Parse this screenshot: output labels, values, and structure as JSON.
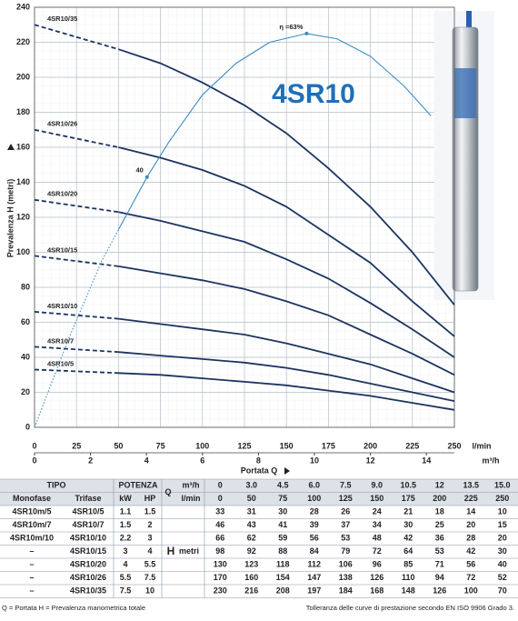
{
  "chart_data": {
    "type": "line",
    "brand": "4SR10",
    "xlabel": "Portata Q",
    "ylabel": "Prevalenza H (metri)",
    "x": [
      0,
      50,
      75,
      100,
      125,
      150,
      175,
      200,
      225,
      250
    ],
    "xlim": [
      0,
      250
    ],
    "xticks": [
      0,
      25,
      50,
      75,
      100,
      125,
      150,
      175,
      200,
      225,
      250
    ],
    "x_unit": "l/min",
    "x2lim": [
      0,
      15
    ],
    "x2ticks": [
      0,
      2,
      4,
      6,
      8,
      10,
      12,
      14
    ],
    "x2_unit": "m³/h",
    "ylim": [
      0,
      240
    ],
    "yticks": [
      0,
      20,
      40,
      60,
      80,
      100,
      120,
      140,
      160,
      180,
      200,
      220,
      240
    ],
    "grid": true,
    "series": [
      {
        "name": "4SR10/5",
        "color": "#1d3461",
        "values": [
          33,
          31,
          30,
          28,
          26,
          24,
          21,
          18,
          14,
          10
        ]
      },
      {
        "name": "4SR10/7",
        "color": "#1d3461",
        "values": [
          46,
          43,
          41,
          39,
          37,
          34,
          30,
          25,
          20,
          15
        ]
      },
      {
        "name": "4SR10/10",
        "color": "#1d3461",
        "values": [
          66,
          62,
          59,
          56,
          53,
          48,
          42,
          36,
          28,
          20
        ]
      },
      {
        "name": "4SR10/15",
        "color": "#1d3461",
        "values": [
          98,
          92,
          88,
          84,
          79,
          72,
          64,
          53,
          42,
          30
        ]
      },
      {
        "name": "4SR10/20",
        "color": "#1d3461",
        "values": [
          130,
          123,
          118,
          112,
          106,
          96,
          85,
          71,
          56,
          40
        ]
      },
      {
        "name": "4SR10/26",
        "color": "#1d3461",
        "values": [
          170,
          160,
          154,
          147,
          138,
          126,
          110,
          94,
          72,
          52
        ]
      },
      {
        "name": "4SR10/35",
        "color": "#1d3461",
        "values": [
          230,
          216,
          208,
          197,
          184,
          168,
          148,
          126,
          100,
          70
        ]
      }
    ],
    "efficiency": {
      "color": "#3b8cc2",
      "x": [
        0,
        20,
        40,
        50,
        67,
        80,
        100,
        120,
        140,
        162,
        180,
        200,
        220,
        236
      ],
      "values": [
        0,
        50,
        95,
        113,
        143,
        163,
        190,
        208,
        220,
        225,
        222,
        212,
        195,
        178
      ],
      "annotations": [
        {
          "text": "η =63%",
          "x": 162,
          "y": 225
        },
        {
          "text": "40",
          "x": 67,
          "y": 143
        }
      ]
    }
  },
  "table": {
    "headers": {
      "tipo": "TIPO",
      "potenza": "POTENZA",
      "q": "Q",
      "monofase": "Monofase",
      "trifase": "Trifase",
      "kw": "kW",
      "hp": "HP",
      "h": "H",
      "metri": "metri"
    },
    "q_m3h": [
      "0",
      "3.0",
      "4.5",
      "6.0",
      "7.5",
      "9.0",
      "10.5",
      "12",
      "13.5",
      "15.0"
    ],
    "monofase": [
      "4SR10m/5",
      "4SR10m/7",
      "4SR10m/10",
      "–",
      "–",
      "–",
      "–"
    ],
    "kw": [
      1.1,
      1.5,
      2.2,
      3,
      4,
      5.5,
      7.5
    ],
    "hp": [
      1.5,
      2,
      3,
      4,
      5.5,
      7.5,
      10
    ]
  },
  "footer": {
    "left": "Q = Portata   H = Prevalenza manometrica totale",
    "right": "Tolleranza delle curve di prestazione secondo EN ISO 9906 Grado 3."
  }
}
